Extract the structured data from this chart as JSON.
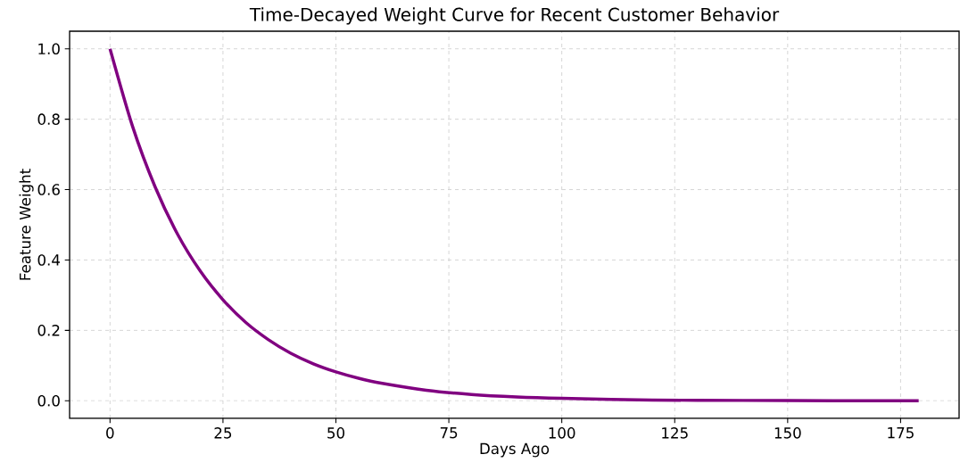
{
  "chart_data": {
    "type": "line",
    "title": "Time-Decayed Weight Curve for Recent Customer Behavior",
    "xlabel": "Days Ago",
    "ylabel": "Feature Weight",
    "x": [
      0,
      5,
      10,
      15,
      20,
      25,
      30,
      35,
      40,
      45,
      50,
      55,
      60,
      70,
      80,
      90,
      100,
      120,
      140,
      160,
      179
    ],
    "series": [
      {
        "color": "#800080",
        "values": [
          1.0,
          0.779,
          0.607,
          0.472,
          0.368,
          0.287,
          0.223,
          0.174,
          0.135,
          0.105,
          0.082,
          0.064,
          0.05,
          0.03,
          0.018,
          0.011,
          0.007,
          0.002,
          0.001,
          0.0,
          0.0
        ]
      }
    ],
    "xlim": [
      -8.95,
      187.95
    ],
    "ylim": [
      -0.05,
      1.05
    ],
    "xticks": [
      0,
      25,
      50,
      75,
      100,
      125,
      150,
      175
    ],
    "yticks": [
      {
        "value": 0,
        "label": "0.0"
      },
      {
        "value": 0.2,
        "label": "0.2"
      },
      {
        "value": 0.4,
        "label": "0.4"
      },
      {
        "value": 0.6,
        "label": "0.6"
      },
      {
        "value": 0.8,
        "label": "0.8"
      },
      {
        "value": 1.0,
        "label": "1.0"
      }
    ],
    "grid": true,
    "line_style": "solid"
  }
}
